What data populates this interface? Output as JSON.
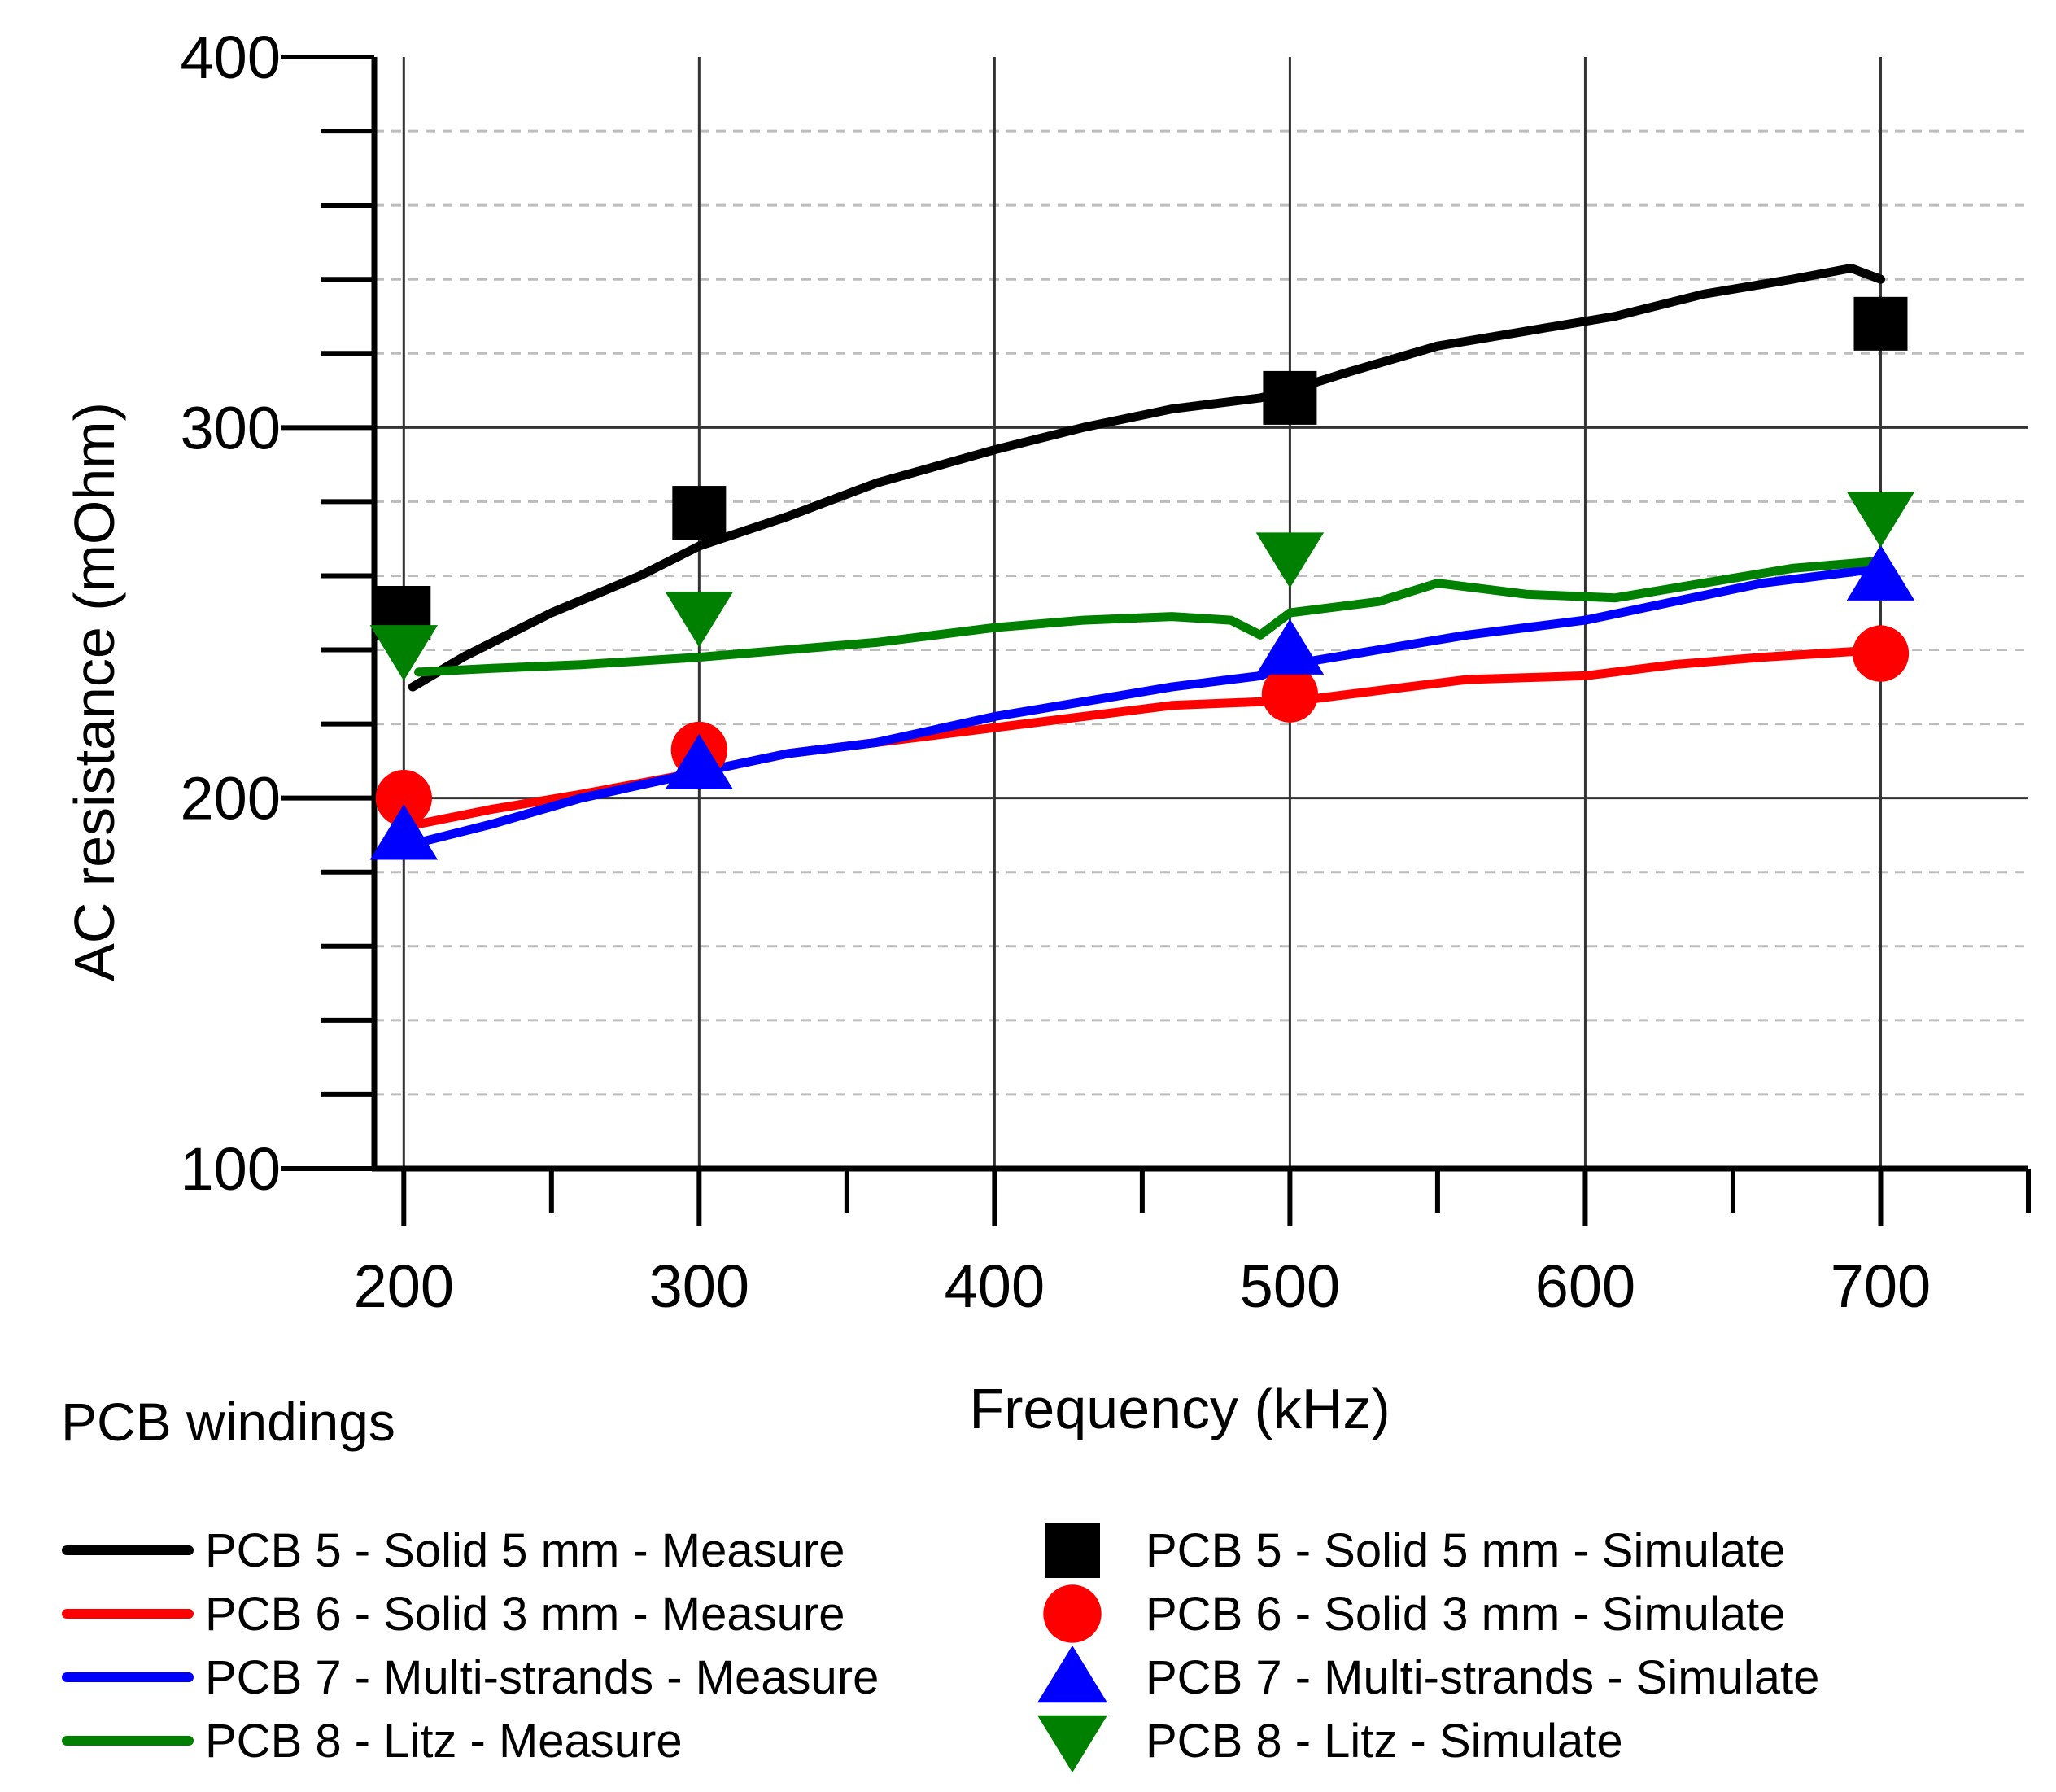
{
  "chart_data": {
    "type": "line",
    "title": "",
    "xlabel": "Frequency (kHz)",
    "ylabel": "AC resistance (mOhm)",
    "xlim": [
      190,
      750
    ],
    "ylim": [
      100,
      400
    ],
    "x_ticks": [
      "200",
      "300",
      "400",
      "500",
      "600",
      "700"
    ],
    "y_ticks": [
      "100",
      "200",
      "300",
      "400"
    ],
    "grid": true,
    "legend_title": "PCB windings",
    "legend_position": "bottom",
    "series": [
      {
        "name": "PCB 5 - Solid 5 mm - Measure",
        "kind": "line",
        "color": "#000000",
        "x": [
          203,
          220,
          250,
          280,
          300,
          330,
          360,
          400,
          430,
          460,
          490,
          500,
          520,
          550,
          580,
          610,
          640,
          670,
          690,
          700
        ],
        "y": [
          230,
          238,
          250,
          260,
          268,
          276,
          285,
          294,
          300,
          305,
          308,
          310,
          315,
          322,
          326,
          330,
          336,
          340,
          343,
          340
        ]
      },
      {
        "name": "PCB 6 - Solid 3 mm - Measure",
        "kind": "line",
        "color": "#ff0000",
        "x": [
          205,
          230,
          260,
          300,
          330,
          360,
          400,
          430,
          460,
          490,
          500,
          530,
          560,
          600,
          630,
          660,
          700
        ],
        "y": [
          193,
          197,
          201,
          207,
          212,
          215,
          219,
          222,
          225,
          226,
          226,
          229,
          232,
          233,
          236,
          238,
          240
        ]
      },
      {
        "name": "PCB 7 - Multi-strands - Measure",
        "kind": "line",
        "color": "#0000ff",
        "x": [
          205,
          230,
          260,
          300,
          330,
          360,
          400,
          430,
          460,
          490,
          500,
          530,
          560,
          600,
          630,
          660,
          700
        ],
        "y": [
          188,
          193,
          200,
          207,
          212,
          215,
          222,
          226,
          230,
          233,
          236,
          240,
          244,
          248,
          253,
          258,
          262
        ]
      },
      {
        "name": "PCB 8 - Litz - Measure",
        "kind": "line",
        "color": "#008000",
        "x": [
          205,
          230,
          260,
          300,
          330,
          360,
          400,
          430,
          460,
          480,
          490,
          500,
          530,
          550,
          580,
          610,
          640,
          670,
          700
        ],
        "y": [
          234,
          235,
          236,
          238,
          240,
          242,
          246,
          248,
          249,
          248,
          244,
          250,
          253,
          258,
          255,
          254,
          258,
          262,
          264
        ]
      },
      {
        "name": "PCB 5 - Solid 5 mm - Simulate",
        "kind": "marker",
        "marker": "square",
        "color": "#000000",
        "x": [
          200,
          300,
          500,
          700
        ],
        "y": [
          250,
          277,
          308,
          328
        ]
      },
      {
        "name": "PCB 6 - Solid 3 mm - Simulate",
        "kind": "marker",
        "marker": "circle",
        "color": "#ff0000",
        "x": [
          200,
          300,
          500,
          700
        ],
        "y": [
          200,
          213,
          228,
          239
        ]
      },
      {
        "name": "PCB 7 - Multi-strands - Simulate",
        "kind": "marker",
        "marker": "triangle-up",
        "color": "#0000ff",
        "x": [
          200,
          300,
          500,
          700
        ],
        "y": [
          190,
          209,
          240,
          260
        ]
      },
      {
        "name": "PCB 8 - Litz - Simulate",
        "kind": "marker",
        "marker": "triangle-down",
        "color": "#008000",
        "x": [
          200,
          300,
          500,
          700
        ],
        "y": [
          240,
          249,
          265,
          276
        ]
      }
    ]
  }
}
